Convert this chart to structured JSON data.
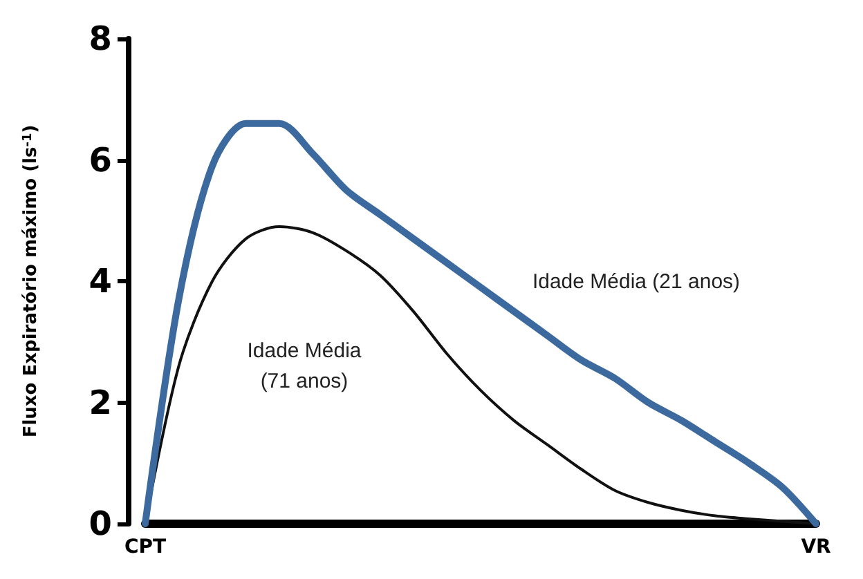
{
  "chart_data": {
    "type": "line",
    "ylabel": "Fluxo Expiratório máximo (ls$^{-1}$)",
    "categories": [
      "CPT",
      null,
      null,
      null,
      null,
      null,
      null,
      null,
      null,
      null,
      null,
      null,
      null,
      null,
      null,
      null,
      null,
      null,
      null,
      null,
      "VR"
    ],
    "ylim": [
      0,
      8
    ],
    "yticks": [
      0,
      2,
      4,
      6,
      8
    ],
    "grid": false,
    "marker": "none",
    "line_style": "solid",
    "series": [
      {
        "color": "#3d6a9e",
        "values": [
          0,
          3.7,
          5.9,
          6.6,
          6.6,
          6.1,
          5.5,
          5.1,
          4.7,
          4.3,
          3.9,
          3.5,
          3.1,
          2.7,
          2.4,
          2.0,
          1.7,
          1.35,
          1.0,
          0.6,
          0
        ]
      },
      {
        "color": "#111111",
        "values": [
          0,
          2.6,
          4.0,
          4.7,
          4.9,
          4.8,
          4.5,
          4.1,
          3.5,
          2.8,
          2.2,
          1.7,
          1.3,
          0.9,
          0.55,
          0.35,
          0.22,
          0.13,
          0.08,
          0.04,
          0
        ]
      }
    ],
    "annotations": [
      "Idade Média (21 anos)",
      "Idade Média\n(71 anos)"
    ]
  }
}
